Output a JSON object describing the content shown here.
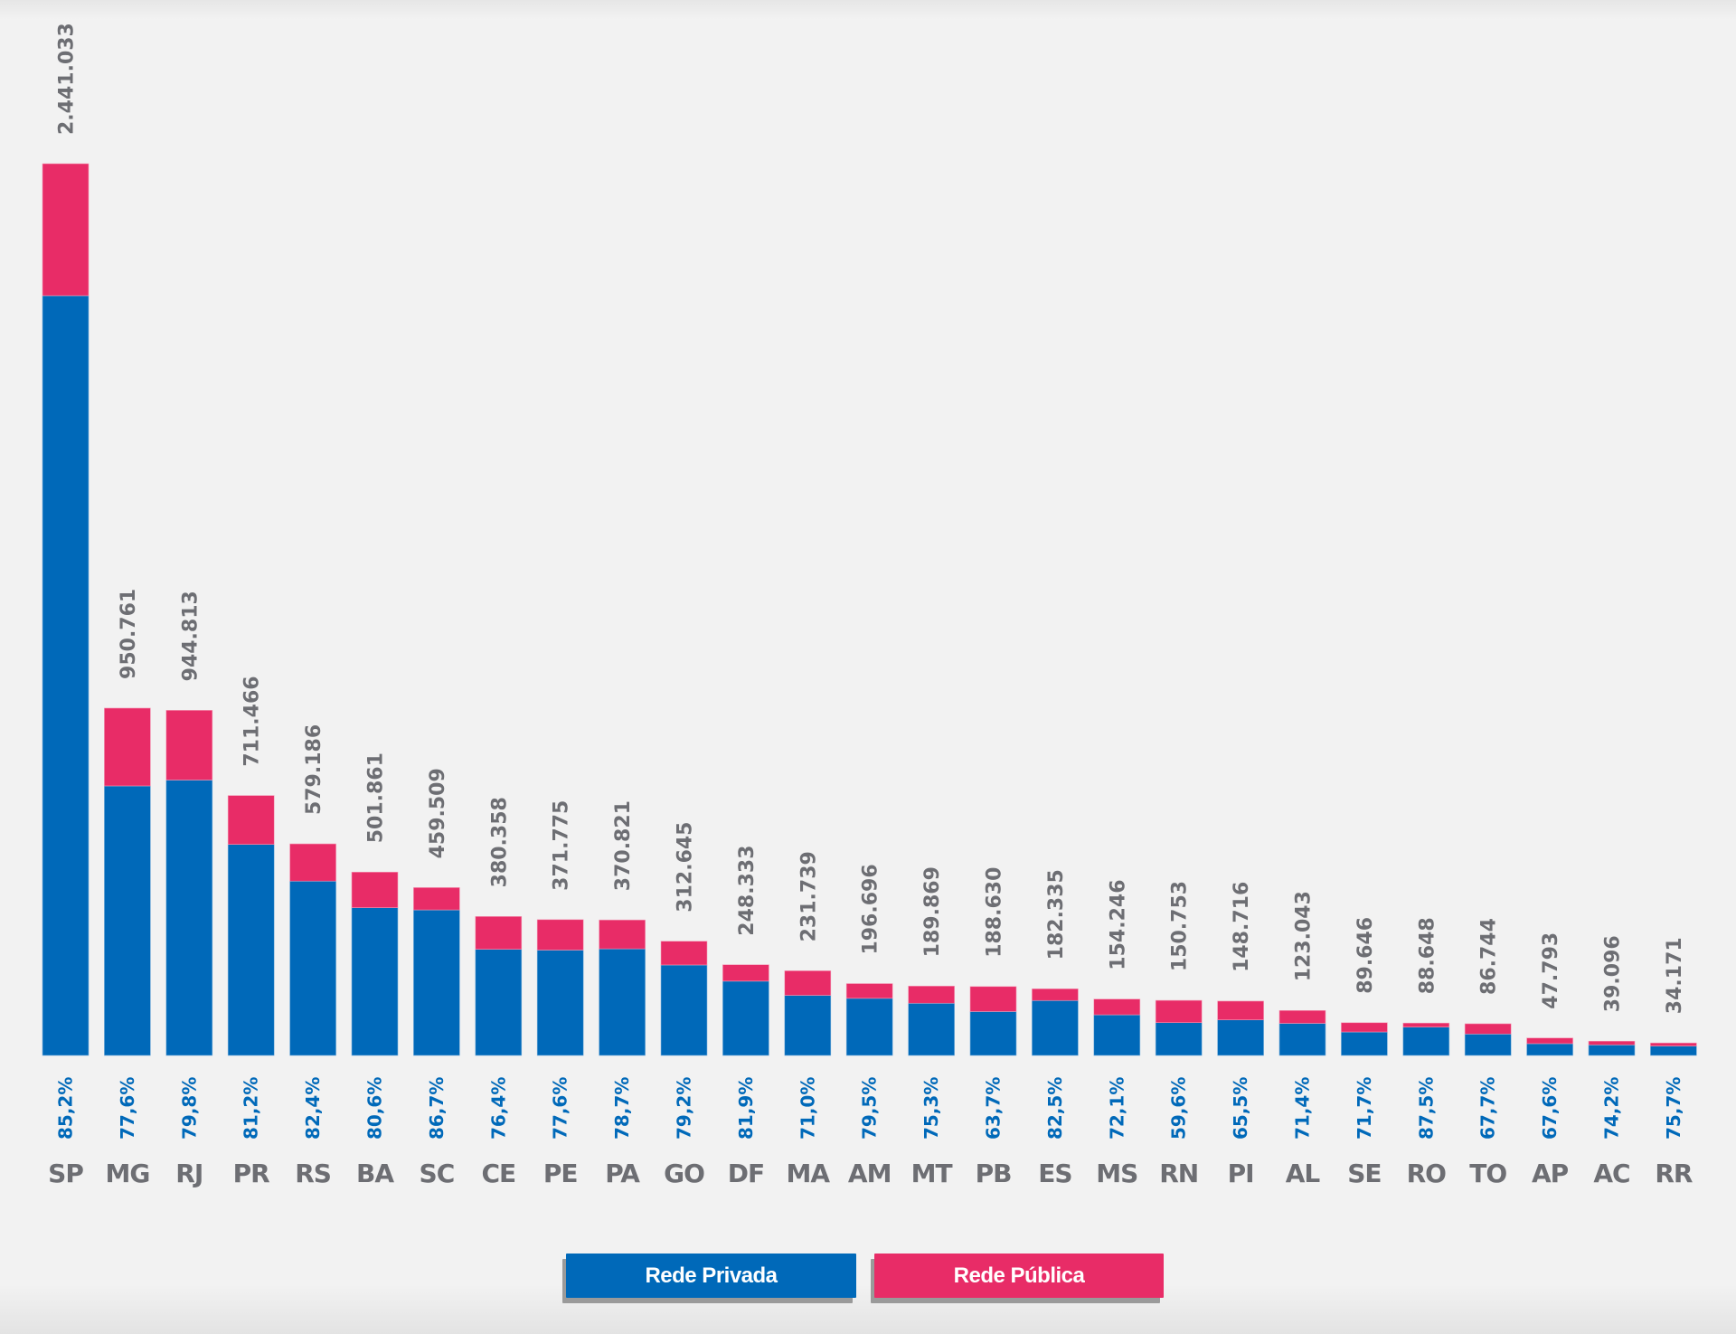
{
  "chart_data": {
    "type": "bar",
    "stacked": true,
    "title": "",
    "xlabel": "",
    "ylabel": "",
    "grid": false,
    "legend_position": "bottom",
    "categories": [
      "SP",
      "MG",
      "RJ",
      "PR",
      "RS",
      "BA",
      "SC",
      "CE",
      "PE",
      "PA",
      "GO",
      "DF",
      "MA",
      "AM",
      "MT",
      "PB",
      "ES",
      "MS",
      "RN",
      "PI",
      "AL",
      "SE",
      "RO",
      "TO",
      "AP",
      "AC",
      "RR"
    ],
    "totals": [
      2441033,
      950761,
      944813,
      711466,
      579186,
      501861,
      459509,
      380358,
      371775,
      370821,
      312645,
      248333,
      231739,
      196696,
      189869,
      188630,
      182335,
      154246,
      150753,
      148716,
      123043,
      89646,
      88648,
      86744,
      47793,
      39096,
      34171
    ],
    "total_labels": [
      "2.441.033",
      "950.761",
      "944.813",
      "711.466",
      "579.186",
      "501.861",
      "459.509",
      "380.358",
      "371.775",
      "370.821",
      "312.645",
      "248.333",
      "231.739",
      "196.696",
      "189.869",
      "188.630",
      "182.335",
      "154.246",
      "150.753",
      "148.716",
      "123.043",
      "89.646",
      "88.648",
      "86.744",
      "47.793",
      "39.096",
      "34.171"
    ],
    "private_share_pct": [
      85.2,
      77.6,
      79.8,
      81.2,
      82.4,
      80.6,
      86.7,
      76.4,
      77.6,
      78.7,
      79.2,
      81.9,
      71.0,
      79.5,
      75.3,
      63.7,
      82.5,
      72.1,
      59.6,
      65.5,
      71.4,
      71.7,
      87.5,
      67.7,
      67.6,
      74.2,
      75.7
    ],
    "private_share_labels": [
      "85,2%",
      "77,6%",
      "79,8%",
      "81,2%",
      "82,4%",
      "80,6%",
      "86,7%",
      "76,4%",
      "77,6%",
      "78,7%",
      "79,2%",
      "81,9%",
      "71,0%",
      "79,5%",
      "75,3%",
      "63,7%",
      "82,5%",
      "72,1%",
      "59,6%",
      "65,5%",
      "71,4%",
      "71,7%",
      "87,5%",
      "67,7%",
      "67,6%",
      "74,2%",
      "75,7%"
    ],
    "series": [
      {
        "name": "Rede Privada",
        "color": "#0069b9",
        "role": "lower segment (share = private_share_pct)"
      },
      {
        "name": "Rede Pública",
        "color": "#e82c67",
        "role": "upper segment (share = 100 - private_share_pct)"
      }
    ],
    "ylim": [
      0,
      2441033
    ]
  },
  "legend": {
    "privada_label": "Rede Privada",
    "publica_label": "Rede Pública"
  }
}
